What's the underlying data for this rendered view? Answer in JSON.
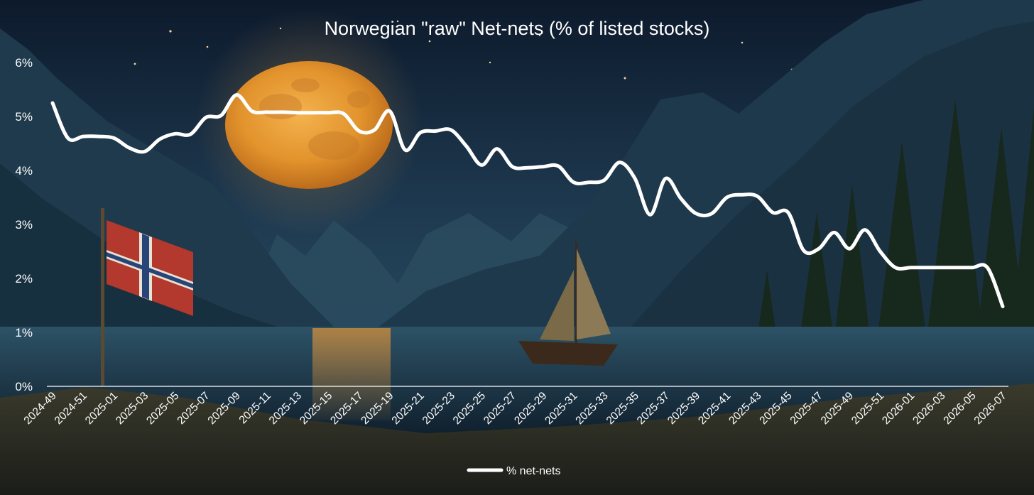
{
  "chart_data": {
    "type": "line",
    "title": "Norwegian \"raw\" Net-nets (% of listed stocks)",
    "xlabel": "",
    "ylabel": "",
    "ylim": [
      0,
      6
    ],
    "y_ticks": [
      "0%",
      "1%",
      "2%",
      "3%",
      "4%",
      "5%",
      "6%"
    ],
    "x_tick_labels": [
      "2024-49",
      "2024-51",
      "2025-01",
      "2025-03",
      "2025-05",
      "2025-07",
      "2025-09",
      "2025-11",
      "2025-13",
      "2025-15",
      "2025-17",
      "2025-19",
      "2025-21",
      "2025-23",
      "2025-25",
      "2025-27",
      "2025-29",
      "2025-31",
      "2025-33",
      "2025-35",
      "2025-37",
      "2025-39",
      "2025-41",
      "2025-43",
      "2025-45",
      "2025-47",
      "2025-49",
      "2025-51",
      "2026-01",
      "2026-03",
      "2026-05",
      "2026-07"
    ],
    "x_categories": [
      "2024-49",
      "2024-50",
      "2024-51",
      "2024-52",
      "2025-01",
      "2025-02",
      "2025-03",
      "2025-04",
      "2025-05",
      "2025-06",
      "2025-07",
      "2025-08",
      "2025-09",
      "2025-10",
      "2025-11",
      "2025-12",
      "2025-13",
      "2025-14",
      "2025-15",
      "2025-16",
      "2025-17",
      "2025-18",
      "2025-19",
      "2025-20",
      "2025-21",
      "2025-22",
      "2025-23",
      "2025-24",
      "2025-25",
      "2025-26",
      "2025-27",
      "2025-28",
      "2025-29",
      "2025-30",
      "2025-31",
      "2025-32",
      "2025-33",
      "2025-34",
      "2025-35",
      "2025-36",
      "2025-37",
      "2025-38",
      "2025-39",
      "2025-40",
      "2025-41",
      "2025-42",
      "2025-43",
      "2025-44",
      "2025-45",
      "2025-46",
      "2025-47",
      "2025-48",
      "2025-49",
      "2025-50",
      "2025-51",
      "2025-52",
      "2026-01",
      "2026-02",
      "2026-03",
      "2026-04",
      "2026-05",
      "2026-06",
      "2026-07"
    ],
    "series": [
      {
        "name": "% net-nets",
        "color": "#ffffff",
        "values": [
          5.25,
          4.6,
          4.63,
          4.63,
          4.6,
          4.42,
          4.35,
          4.58,
          4.68,
          4.67,
          4.98,
          5.02,
          5.4,
          5.1,
          5.08,
          5.08,
          5.07,
          5.07,
          5.07,
          5.05,
          4.73,
          4.75,
          5.1,
          4.38,
          4.7,
          4.73,
          4.75,
          4.45,
          4.1,
          4.4,
          4.07,
          4.05,
          4.07,
          4.08,
          3.78,
          3.78,
          3.82,
          4.15,
          3.85,
          3.18,
          3.85,
          3.48,
          3.2,
          3.2,
          3.5,
          3.55,
          3.52,
          3.22,
          3.22,
          2.52,
          2.55,
          2.85,
          2.55,
          2.9,
          2.5,
          2.2,
          2.2,
          2.2,
          2.2,
          2.2,
          2.2,
          2.2,
          1.48
        ]
      }
    ],
    "grid": false,
    "legend": {
      "position": "bottom-center"
    }
  }
}
